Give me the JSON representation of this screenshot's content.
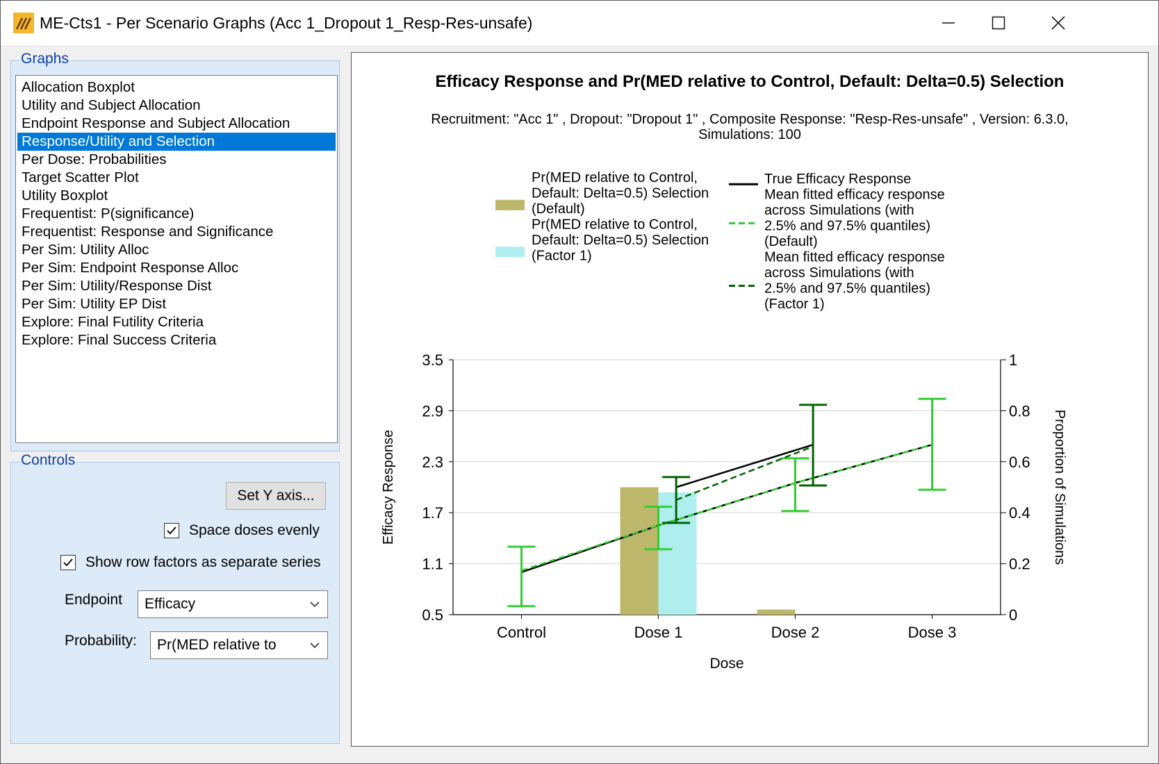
{
  "window": {
    "title": "ME-Cts1 - Per Scenario Graphs (Acc 1_Dropout 1_Resp-Res-unsafe)",
    "app_icon": "app-logo-icon",
    "controls": [
      "minimize-icon",
      "maximize-icon",
      "close-icon"
    ]
  },
  "graphs_panel": {
    "legend": "Graphs",
    "selected_index": 3,
    "items": [
      "Allocation Boxplot",
      "Utility and Subject Allocation",
      "Endpoint Response and Subject Allocation",
      "Response/Utility and Selection",
      "Per Dose: Probabilities",
      "Target Scatter Plot",
      "Utility Boxplot",
      "Frequentist: P(significance)",
      "Frequentist: Response and Significance",
      "Per Sim: Utility Alloc",
      "Per Sim: Endpoint Response Alloc",
      "Per Sim: Utility/Response Dist",
      "Per Sim: Utility EP Dist",
      "Explore: Final Futility Criteria",
      "Explore: Final Success Criteria"
    ]
  },
  "controls_panel": {
    "legend": "Controls",
    "set_y_axis_label": "Set Y axis...",
    "space_doses": {
      "label": "Space doses evenly",
      "checked": true
    },
    "row_factors": {
      "label": "Show row factors as separate series",
      "checked": true
    },
    "endpoint": {
      "label": "Endpoint",
      "value": "Efficacy"
    },
    "probability": {
      "label": "Probability:",
      "value": "Pr(MED relative to"
    }
  },
  "chart_data": {
    "type": "bar+line",
    "title": "Efficacy Response and Pr(MED relative to Control, Default: Delta=0.5) Selection",
    "subtitle_line1": "Recruitment: \"Acc 1\" , Dropout: \"Dropout 1\" , Composite Response: \"Resp-Res-unsafe\" , Version: 6.3.0,",
    "subtitle_line2": "Simulations: 100",
    "xlabel": "Dose",
    "ylabel_left": "Efficacy Response",
    "ylabel_right": "Proportion of Simulations",
    "categories": [
      "Control",
      "Dose 1",
      "Dose 2",
      "Dose 3"
    ],
    "ylim_left": [
      0.5,
      3.5
    ],
    "yticks_left": [
      "0.5",
      "1.1",
      "1.7",
      "2.3",
      "2.9",
      "3.5"
    ],
    "ylim_right": [
      0,
      1
    ],
    "yticks_right": [
      "0",
      "0.2",
      "0.4",
      "0.6",
      "0.8",
      "1"
    ],
    "grid": true,
    "legend_position": "top",
    "legend_left": [
      {
        "label": [
          "Pr(MED relative to Control,",
          "Default: Delta=0.5) Selection",
          "(Default)"
        ],
        "color": "#bdb76b"
      },
      {
        "label": [
          "Pr(MED relative to Control,",
          "Default: Delta=0.5) Selection",
          "(Factor 1)"
        ],
        "color": "#afeeee"
      }
    ],
    "legend_right": [
      {
        "label": [
          "True Efficacy Response"
        ],
        "color": "#000000",
        "dash": false
      },
      {
        "label": [
          "Mean fitted efficacy response",
          "across Simulations (with",
          "2.5% and 97.5% quantiles)",
          "(Default)"
        ],
        "color": "#32cd32",
        "dash": true
      },
      {
        "label": [
          "Mean fitted efficacy response",
          "across Simulations (with",
          "2.5% and 97.5% quantiles)",
          "(Factor 1)"
        ],
        "color": "#006400",
        "dash": true
      }
    ],
    "bars": [
      {
        "name": "Default",
        "color": "#bdb76b",
        "values": [
          0,
          0.5,
          0.02,
          0
        ]
      },
      {
        "name": "Factor 1",
        "color": "#afeeee",
        "values": [
          0,
          0.48,
          0,
          0
        ]
      }
    ],
    "true_response": [
      {
        "x": [
          0,
          1,
          2,
          3
        ],
        "y": [
          1.0,
          1.55,
          2.05,
          2.5
        ]
      },
      {
        "x": [
          1.13,
          2.13
        ],
        "y": [
          2.0,
          2.5
        ]
      }
    ],
    "series": [
      {
        "name": "Default",
        "color": "#32cd32",
        "x": [
          0,
          1,
          2,
          3
        ],
        "mean": [
          1.02,
          1.55,
          2.05,
          2.5
        ],
        "low": [
          0.6,
          1.27,
          1.72,
          1.97
        ],
        "high": [
          1.3,
          1.77,
          2.34,
          3.04
        ]
      },
      {
        "name": "Factor 1",
        "color": "#006400",
        "x": [
          1.13,
          2.13
        ],
        "mean": [
          1.85,
          2.48
        ],
        "low": [
          1.58,
          2.02
        ],
        "high": [
          2.12,
          2.97
        ]
      }
    ]
  }
}
